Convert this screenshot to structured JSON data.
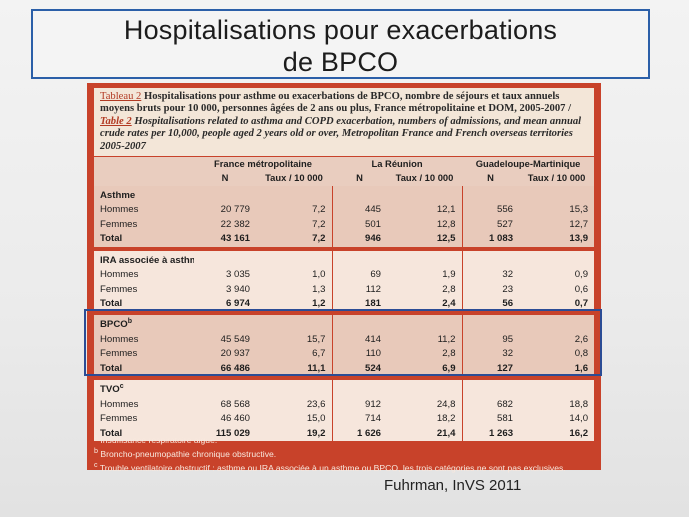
{
  "title": {
    "line1": "Hospitalisations pour exacerbations",
    "line2": "de BPCO"
  },
  "caption": {
    "tableau_fr": "Tableau 2",
    "text_fr": "Hospitalisations pour asthme ou exacerbations de BPCO, nombre de séjours et taux annuels moyens bruts pour 10 000, personnes âgées de 2 ans ou plus, France métropolitaine et DOM, 2005-2007 /",
    "table_en": "Table 2",
    "text_en": "Hospitalisations related to asthma and COPD exacerbation, numbers of admissions, and mean annual crude rates per 10,000, people aged 2 years old or over, Metropolitan France and French overseas territories 2005-2007"
  },
  "header": {
    "regions": [
      "France métropolitaine",
      "La Réunion",
      "Guadeloupe-Martinique"
    ],
    "col_n": "N",
    "col_taux": "Taux / 10 000"
  },
  "groups": [
    {
      "label": "Asthme",
      "sup": "",
      "rows": [
        {
          "label": "Hommes",
          "v": [
            "20 779",
            "7,2",
            "445",
            "12,1",
            "556",
            "15,3"
          ]
        },
        {
          "label": "Femmes",
          "v": [
            "22 382",
            "7,2",
            "501",
            "12,8",
            "527",
            "12,7"
          ]
        },
        {
          "label": "Total",
          "v": [
            "43 161",
            "7,2",
            "946",
            "12,5",
            "1 083",
            "13,9"
          ]
        }
      ]
    },
    {
      "label": "IRA associée à asthme",
      "sup": "a",
      "rows": [
        {
          "label": "Hommes",
          "v": [
            "3 035",
            "1,0",
            "69",
            "1,9",
            "32",
            "0,9"
          ]
        },
        {
          "label": "Femmes",
          "v": [
            "3 940",
            "1,3",
            "112",
            "2,8",
            "23",
            "0,6"
          ]
        },
        {
          "label": "Total",
          "v": [
            "6 974",
            "1,2",
            "181",
            "2,4",
            "56",
            "0,7"
          ]
        }
      ]
    },
    {
      "label": "BPCO",
      "sup": "b",
      "rows": [
        {
          "label": "Hommes",
          "v": [
            "45 549",
            "15,7",
            "414",
            "11,2",
            "95",
            "2,6"
          ]
        },
        {
          "label": "Femmes",
          "v": [
            "20 937",
            "6,7",
            "110",
            "2,8",
            "32",
            "0,8"
          ]
        },
        {
          "label": "Total",
          "v": [
            "66 486",
            "11,1",
            "524",
            "6,9",
            "127",
            "1,6"
          ]
        }
      ]
    },
    {
      "label": "TVO",
      "sup": "c",
      "rows": [
        {
          "label": "Hommes",
          "v": [
            "68 568",
            "23,6",
            "912",
            "24,8",
            "682",
            "18,8"
          ]
        },
        {
          "label": "Femmes",
          "v": [
            "46 460",
            "15,0",
            "714",
            "18,2",
            "581",
            "14,0"
          ]
        },
        {
          "label": "Total",
          "v": [
            "115 029",
            "19,2",
            "1 626",
            "21,4",
            "1 263",
            "16,2"
          ]
        }
      ]
    }
  ],
  "footnotes": [
    {
      "sup": "a",
      "text": "Insuffisance respiratoire aiguë."
    },
    {
      "sup": "b",
      "text": "Broncho-pneumopathie chronique obstructive."
    },
    {
      "sup": "c",
      "text": "Trouble ventilatoire obstructif : asthme ou IRA associée à un asthme ou BPCO, les trois catégories ne sont pas exclusives."
    }
  ],
  "source": "Fuhrman, InVS 2011",
  "colors": {
    "panel": "#c8422a",
    "highlight": "#2b4c95",
    "title_border": "#2b5fa8"
  }
}
